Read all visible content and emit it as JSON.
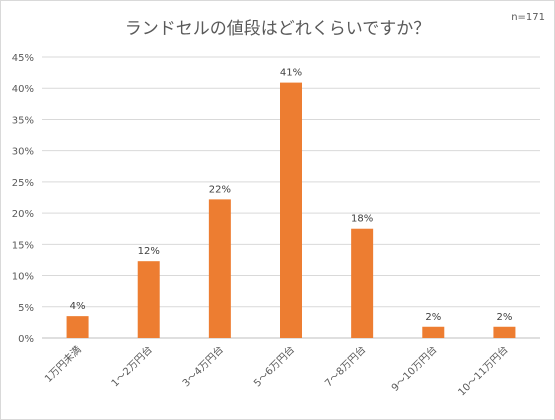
{
  "chart_data": {
    "type": "bar",
    "title": "ランドセルの値段はどれくらいですか？",
    "note": "n=171",
    "categories": [
      "1万円未満",
      "1～2万円台",
      "3～4万円台",
      "5～6万円台",
      "7～8万円台",
      "9～10万円台",
      "10～11万円台"
    ],
    "values": [
      3.5,
      12.3,
      22.2,
      40.9,
      17.5,
      1.8,
      1.8
    ],
    "data_labels": [
      "4%",
      "12%",
      "22%",
      "41%",
      "18%",
      "2%",
      "2%"
    ],
    "y_ticks": [
      "0%",
      "5%",
      "10%",
      "15%",
      "20%",
      "25%",
      "30%",
      "35%",
      "40%",
      "45%"
    ],
    "ylim": [
      0,
      45
    ],
    "bar_color": "#ED7D31",
    "grid": true,
    "legend": "none"
  }
}
